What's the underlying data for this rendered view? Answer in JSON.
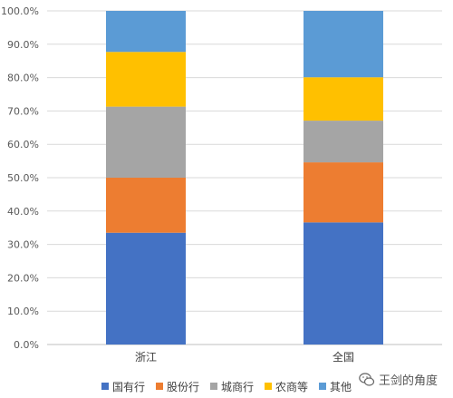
{
  "chart_data": {
    "type": "bar",
    "stacked": true,
    "categories": [
      "浙江",
      "全国"
    ],
    "series": [
      {
        "name": "国有行",
        "color": "#4472C4",
        "values": [
          33.5,
          36.6
        ]
      },
      {
        "name": "股份行",
        "color": "#ED7D31",
        "values": [
          16.5,
          18.0
        ]
      },
      {
        "name": "城商行",
        "color": "#A5A5A5",
        "values": [
          21.3,
          12.5
        ]
      },
      {
        "name": "农商等",
        "color": "#FFC000",
        "values": [
          16.4,
          13.0
        ]
      },
      {
        "name": "其他",
        "color": "#5B9BD5",
        "values": [
          12.3,
          19.9
        ]
      }
    ],
    "ylim": [
      0,
      100
    ],
    "yticks": [
      "0.0%",
      "10.0%",
      "20.0%",
      "30.0%",
      "40.0%",
      "50.0%",
      "60.0%",
      "70.0%",
      "80.0%",
      "90.0%",
      "100.0%"
    ],
    "grid": true,
    "legend_position": "bottom"
  },
  "watermark": {
    "text": "王剑的角度",
    "icon": "wechat-icon"
  }
}
